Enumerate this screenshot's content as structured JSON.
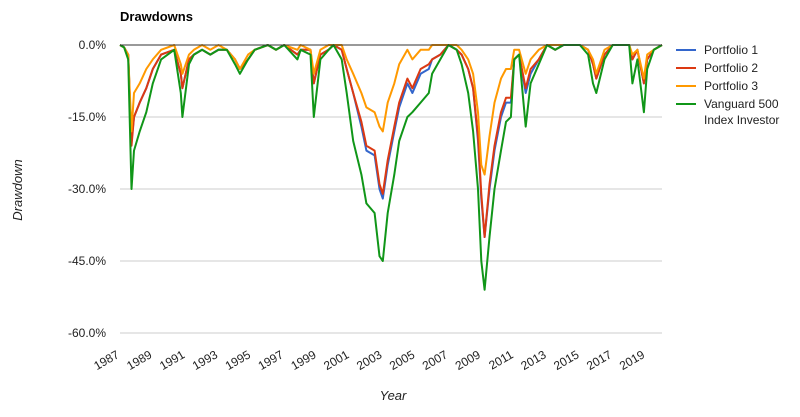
{
  "chart_data": {
    "type": "line",
    "title": "Drawdowns",
    "xlabel": "Year",
    "ylabel": "Drawdown",
    "xlim": [
      1987,
      2020
    ],
    "ylim": [
      -60,
      0
    ],
    "x_ticks": [
      "1987",
      "1989",
      "1991",
      "1993",
      "1995",
      "1997",
      "1999",
      "2001",
      "2003",
      "2005",
      "2007",
      "2009",
      "2011",
      "2013",
      "2015",
      "2017",
      "2019"
    ],
    "y_ticks": [
      "0.0%",
      "-15.0%",
      "-30.0%",
      "-45.0%",
      "-60.0%"
    ],
    "y_tick_values": [
      0,
      -15,
      -30,
      -45,
      -60
    ],
    "grid": true,
    "legend_position": "right",
    "series": [
      {
        "name": "Portfolio 1",
        "color": "#3366cc",
        "x": [
          1987.0,
          1987.25,
          1987.5,
          1987.7,
          1987.85,
          1988.2,
          1988.6,
          1989.0,
          1989.5,
          1990.3,
          1990.7,
          1990.8,
          1991.2,
          1991.5,
          1992.0,
          1992.5,
          1993.0,
          1993.5,
          1994.0,
          1994.3,
          1994.8,
          1995.2,
          1996.0,
          1996.5,
          1997.0,
          1997.8,
          1998.0,
          1998.6,
          1998.8,
          1999.2,
          1999.7,
          2000.0,
          2000.5,
          2000.8,
          2001.2,
          2001.7,
          2002.0,
          2002.5,
          2002.8,
          2003.0,
          2003.3,
          2003.7,
          2004.0,
          2004.5,
          2004.8,
          2005.3,
          2005.8,
          2006.0,
          2006.5,
          2007.0,
          2007.5,
          2007.8,
          2008.2,
          2008.5,
          2008.8,
          2009.0,
          2009.2,
          2009.5,
          2009.8,
          2010.2,
          2010.5,
          2010.8,
          2011.0,
          2011.3,
          2011.7,
          2012.0,
          2012.5,
          2013.0,
          2013.5,
          2014.0,
          2014.5,
          2015.0,
          2015.5,
          2015.8,
          2016.0,
          2016.5,
          2017.0,
          2017.5,
          2018.0,
          2018.2,
          2018.5,
          2018.9,
          2019.1,
          2019.5,
          2020.0
        ],
        "values": [
          0,
          -0.5,
          -2,
          -20,
          -15,
          -12,
          -9,
          -5,
          -2,
          -1,
          -6,
          -9,
          -3,
          -2,
          -1,
          -2,
          -1,
          -1,
          -3,
          -5,
          -3,
          -1,
          0,
          -1,
          0,
          -2,
          -1,
          -1,
          -8,
          -2,
          -1,
          0,
          -1,
          -5,
          -10,
          -17,
          -22,
          -23,
          -30,
          -32,
          -25,
          -18,
          -13,
          -8,
          -10,
          -6,
          -5,
          -3,
          -2,
          0,
          -1,
          -2,
          -5,
          -9,
          -20,
          -32,
          -40,
          -30,
          -22,
          -15,
          -12,
          -12,
          -3,
          -2,
          -10,
          -6,
          -3,
          0,
          -1,
          0,
          0,
          0,
          -1,
          -4,
          -7,
          -2,
          0,
          0,
          0,
          -3,
          -1,
          -8,
          -3,
          -1,
          0
        ]
      },
      {
        "name": "Portfolio 2",
        "color": "#dc3912",
        "x": [
          1987.0,
          1987.25,
          1987.5,
          1987.7,
          1987.85,
          1988.2,
          1988.6,
          1989.0,
          1989.5,
          1990.3,
          1990.7,
          1990.8,
          1991.2,
          1991.5,
          1992.0,
          1992.5,
          1993.0,
          1993.5,
          1994.0,
          1994.3,
          1994.8,
          1995.2,
          1996.0,
          1996.5,
          1997.0,
          1997.8,
          1998.0,
          1998.6,
          1998.8,
          1999.2,
          1999.7,
          2000.0,
          2000.5,
          2000.8,
          2001.2,
          2001.7,
          2002.0,
          2002.5,
          2002.8,
          2003.0,
          2003.3,
          2003.7,
          2004.0,
          2004.5,
          2004.8,
          2005.3,
          2005.8,
          2006.0,
          2006.5,
          2007.0,
          2007.5,
          2007.8,
          2008.2,
          2008.5,
          2008.8,
          2009.0,
          2009.2,
          2009.5,
          2009.8,
          2010.2,
          2010.5,
          2010.8,
          2011.0,
          2011.3,
          2011.7,
          2012.0,
          2012.5,
          2013.0,
          2013.5,
          2014.0,
          2014.5,
          2015.0,
          2015.5,
          2015.8,
          2016.0,
          2016.5,
          2017.0,
          2017.5,
          2018.0,
          2018.2,
          2018.5,
          2018.9,
          2019.1,
          2019.5,
          2020.0
        ],
        "values": [
          0,
          -0.5,
          -2,
          -21,
          -15,
          -12,
          -9,
          -5,
          -2,
          -1,
          -6,
          -9,
          -3,
          -2,
          -1,
          -2,
          -1,
          -1,
          -3,
          -5,
          -3,
          -1,
          0,
          -1,
          0,
          -2,
          -1,
          -1,
          -8,
          -2,
          -1,
          0,
          -1,
          -5,
          -10,
          -16,
          -21,
          -22,
          -29,
          -31,
          -24,
          -17,
          -12,
          -7,
          -9,
          -5,
          -4,
          -3,
          -2,
          0,
          -1,
          -2,
          -5,
          -9,
          -19,
          -31,
          -40,
          -29,
          -21,
          -14,
          -11,
          -11,
          -3,
          -2,
          -9,
          -5,
          -3,
          0,
          -1,
          0,
          0,
          0,
          -1,
          -4,
          -7,
          -2,
          0,
          0,
          0,
          -3,
          -1,
          -8,
          -3,
          -1,
          0
        ]
      },
      {
        "name": "Portfolio 3",
        "color": "#ff9900",
        "x": [
          1987.0,
          1987.25,
          1987.5,
          1987.7,
          1987.85,
          1988.2,
          1988.6,
          1989.0,
          1989.5,
          1990.3,
          1990.7,
          1990.8,
          1991.2,
          1991.5,
          1992.0,
          1992.5,
          1993.0,
          1993.5,
          1994.0,
          1994.3,
          1994.8,
          1995.2,
          1996.0,
          1996.5,
          1997.0,
          1997.8,
          1998.0,
          1998.6,
          1998.8,
          1999.2,
          1999.7,
          2000.0,
          2000.5,
          2000.8,
          2001.2,
          2001.7,
          2002.0,
          2002.5,
          2002.8,
          2003.0,
          2003.3,
          2003.7,
          2004.0,
          2004.5,
          2004.8,
          2005.3,
          2005.8,
          2006.0,
          2006.5,
          2007.0,
          2007.5,
          2007.8,
          2008.2,
          2008.5,
          2008.8,
          2009.0,
          2009.2,
          2009.5,
          2009.8,
          2010.2,
          2010.5,
          2010.8,
          2011.0,
          2011.3,
          2011.7,
          2012.0,
          2012.5,
          2013.0,
          2013.5,
          2014.0,
          2014.5,
          2015.0,
          2015.5,
          2015.8,
          2016.0,
          2016.5,
          2017.0,
          2017.5,
          2018.0,
          2018.2,
          2018.5,
          2018.9,
          2019.1,
          2019.5,
          2020.0
        ],
        "values": [
          0,
          -0.5,
          -2,
          -18,
          -10,
          -8,
          -5,
          -3,
          -1,
          0,
          -4,
          -6,
          -2,
          -1,
          0,
          -1,
          0,
          -1,
          -3,
          -5,
          -2,
          -1,
          0,
          -1,
          0,
          -1,
          0,
          -1,
          -6,
          -1,
          0,
          0,
          0,
          -3,
          -6,
          -10,
          -13,
          -14,
          -17,
          -18,
          -12,
          -8,
          -4,
          -1,
          -3,
          -1,
          -1,
          0,
          0,
          0,
          0,
          -1,
          -3,
          -6,
          -14,
          -25,
          -27,
          -19,
          -12,
          -7,
          -5,
          -5,
          -1,
          -1,
          -6,
          -3,
          -1,
          0,
          0,
          0,
          0,
          0,
          -1,
          -3,
          -6,
          -1,
          0,
          0,
          0,
          -2,
          -1,
          -7,
          -2,
          -1,
          0
        ]
      },
      {
        "name": "Vanguard 500 Index Investor",
        "color": "#109618",
        "x": [
          1987.0,
          1987.25,
          1987.5,
          1987.7,
          1987.85,
          1988.2,
          1988.6,
          1989.0,
          1989.5,
          1990.3,
          1990.7,
          1990.8,
          1991.2,
          1991.5,
          1992.0,
          1992.5,
          1993.0,
          1993.5,
          1994.0,
          1994.3,
          1994.8,
          1995.2,
          1996.0,
          1996.5,
          1997.0,
          1997.8,
          1998.0,
          1998.6,
          1998.8,
          1999.2,
          1999.7,
          2000.0,
          2000.5,
          2000.8,
          2001.2,
          2001.7,
          2002.0,
          2002.5,
          2002.8,
          2003.0,
          2003.3,
          2003.7,
          2004.0,
          2004.5,
          2004.8,
          2005.3,
          2005.8,
          2006.0,
          2006.5,
          2007.0,
          2007.5,
          2007.8,
          2008.2,
          2008.5,
          2008.8,
          2009.0,
          2009.2,
          2009.5,
          2009.8,
          2010.2,
          2010.5,
          2010.8,
          2011.0,
          2011.3,
          2011.7,
          2012.0,
          2012.5,
          2013.0,
          2013.5,
          2014.0,
          2014.5,
          2015.0,
          2015.5,
          2015.8,
          2016.0,
          2016.5,
          2017.0,
          2017.5,
          2018.0,
          2018.2,
          2018.5,
          2018.9,
          2019.1,
          2019.5,
          2020.0
        ],
        "values": [
          0,
          -0.5,
          -3,
          -30,
          -22,
          -18,
          -14,
          -8,
          -3,
          -1,
          -10,
          -15,
          -4,
          -2,
          -1,
          -2,
          -1,
          -1,
          -4,
          -6,
          -3,
          -1,
          0,
          -1,
          0,
          -3,
          -1,
          -2,
          -15,
          -3,
          -1,
          0,
          -3,
          -10,
          -20,
          -27,
          -33,
          -35,
          -44,
          -45,
          -35,
          -27,
          -20,
          -15,
          -14,
          -12,
          -10,
          -6,
          -3,
          0,
          -1,
          -4,
          -10,
          -18,
          -30,
          -45,
          -51,
          -40,
          -30,
          -22,
          -16,
          -15,
          -3,
          -2,
          -17,
          -8,
          -4,
          0,
          -1,
          0,
          0,
          0,
          -2,
          -8,
          -10,
          -3,
          0,
          0,
          0,
          -8,
          -3,
          -14,
          -5,
          -1,
          0
        ]
      }
    ]
  }
}
